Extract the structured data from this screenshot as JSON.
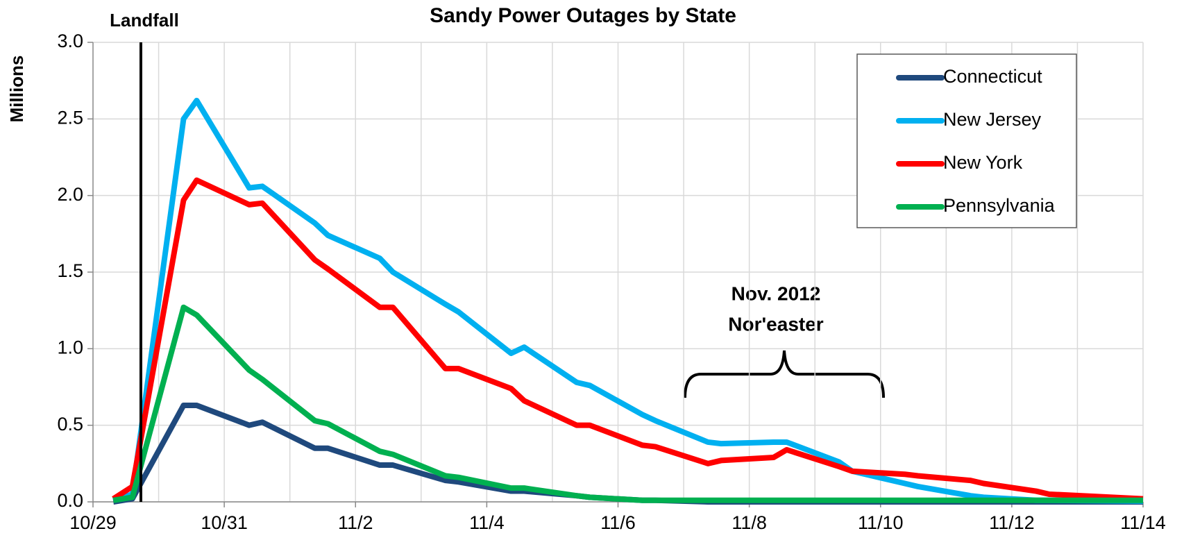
{
  "chart_data": {
    "type": "line",
    "title": "Sandy Power Outages by State",
    "y_label": "Millions",
    "annotations": [
      "Landfall",
      "Nov. 2012",
      "Nor'easter"
    ],
    "x": [
      0.31,
      0.6,
      1.38,
      1.58,
      2.38,
      2.58,
      3.38,
      3.58,
      4.37,
      4.57,
      5.37,
      5.57,
      6.37,
      6.57,
      7.37,
      7.57,
      8.37,
      8.57,
      9.37,
      9.57,
      10.37,
      10.57,
      11.37,
      11.57,
      12.37,
      12.57,
      13.37,
      13.57,
      14.37,
      14.57,
      16
    ],
    "series": [
      {
        "name": "Connecticut",
        "color": "#1f497d",
        "values": [
          0,
          0.02,
          0.63,
          0.63,
          0.5,
          0.52,
          0.35,
          0.35,
          0.24,
          0.24,
          0.14,
          0.13,
          0.07,
          0.07,
          0.04,
          0.03,
          0.01,
          0.01,
          0,
          0,
          0,
          0,
          0,
          0,
          0,
          0,
          0,
          0,
          0,
          0,
          0
        ]
      },
      {
        "name": "New Jersey",
        "color": "#00b0f0",
        "values": [
          0.01,
          0.05,
          2.5,
          2.62,
          2.05,
          2.06,
          1.82,
          1.74,
          1.59,
          1.5,
          1.29,
          1.24,
          0.97,
          1.01,
          0.78,
          0.76,
          0.57,
          0.53,
          0.39,
          0.38,
          0.39,
          0.39,
          0.26,
          0.2,
          0.12,
          0.1,
          0.04,
          0.03,
          0.01,
          0.01,
          0.005
        ]
      },
      {
        "name": "New York",
        "color": "#ff0000",
        "values": [
          0.02,
          0.1,
          1.97,
          2.1,
          1.94,
          1.95,
          1.58,
          1.52,
          1.27,
          1.27,
          0.87,
          0.87,
          0.74,
          0.66,
          0.5,
          0.5,
          0.37,
          0.36,
          0.25,
          0.27,
          0.29,
          0.34,
          0.23,
          0.2,
          0.18,
          0.17,
          0.14,
          0.12,
          0.07,
          0.05,
          0.02
        ]
      },
      {
        "name": "Pennsylvania",
        "color": "#00b050",
        "values": [
          0.01,
          0.03,
          1.27,
          1.22,
          0.86,
          0.8,
          0.53,
          0.51,
          0.33,
          0.31,
          0.17,
          0.16,
          0.09,
          0.09,
          0.04,
          0.03,
          0.01,
          0.01,
          0.01,
          0.01,
          0.01,
          0.01,
          0.01,
          0.01,
          0.01,
          0.01,
          0.01,
          0.01,
          0.01,
          0.01,
          0.01
        ]
      }
    ],
    "xlim": [
      0,
      16
    ],
    "xticks": [
      {
        "value": 0,
        "label": "10/29"
      },
      {
        "value": 2,
        "label": "10/31"
      },
      {
        "value": 4,
        "label": "11/2"
      },
      {
        "value": 6,
        "label": "11/4"
      },
      {
        "value": 8,
        "label": "11/6"
      },
      {
        "value": 10,
        "label": "11/8"
      },
      {
        "value": 12,
        "label": "11/10"
      },
      {
        "value": 14,
        "label": "11/12"
      },
      {
        "value": 16,
        "label": "11/14"
      }
    ],
    "xgrid": [
      1,
      3,
      5,
      7,
      9,
      11,
      13,
      15
    ],
    "ylim": [
      0,
      3
    ],
    "yticks": [
      {
        "value": 0,
        "label": "0.0"
      },
      {
        "value": 0.5,
        "label": "0.5"
      },
      {
        "value": 1,
        "label": "1.0"
      },
      {
        "value": 1.5,
        "label": "1.5"
      },
      {
        "value": 2,
        "label": "2.0"
      },
      {
        "value": 2.5,
        "label": "2.5"
      },
      {
        "value": 3,
        "label": "3.0"
      }
    ],
    "grid": true,
    "legend": "upper right"
  }
}
